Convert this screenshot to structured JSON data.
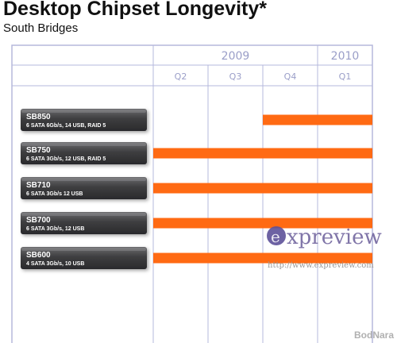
{
  "title": "Desktop Chipset Longevity*",
  "subtitle": "South Bridges",
  "colors": {
    "bar": "#ff6a13",
    "grid": "#b6b8dc",
    "label_bg": "#3b3b3d",
    "axis_text": "#9a9ec8"
  },
  "chart_data": {
    "type": "bar",
    "orientation": "horizontal-timeline",
    "title": "Desktop Chipset Longevity*",
    "subtitle": "South Bridges",
    "years": [
      {
        "label": "2009",
        "span_quarters": 3
      },
      {
        "label": "2010",
        "span_quarters": 1
      }
    ],
    "quarters": [
      "Q2",
      "Q3",
      "Q4",
      "Q1"
    ],
    "categories": [
      {
        "name": "SB850",
        "desc": "6 SATA 6Gb/s, 14 USB, RAID 5",
        "start_q": 2.0,
        "end_q": 4.0
      },
      {
        "name": "SB750",
        "desc": "6 SATA 3Gb/s, 12 USB, RAID 5",
        "start_q": 0,
        "end_q": 4.0
      },
      {
        "name": "SB710",
        "desc": "6 SATA 3Gb/s 12 USB",
        "start_q": 0,
        "end_q": 4.0
      },
      {
        "name": "SB700",
        "desc": "6 SATA 3Gb/s, 12 USB",
        "start_q": 0,
        "end_q": 4.0
      },
      {
        "name": "SB600",
        "desc": "4 SATA 3Gb/s, 10 USB",
        "start_q": 0,
        "end_q": 4.0
      }
    ]
  },
  "watermark": {
    "brand_letter": "e",
    "brand_text": "xpreview",
    "url": "http://www.expreview.com",
    "corner": "BodNara"
  }
}
